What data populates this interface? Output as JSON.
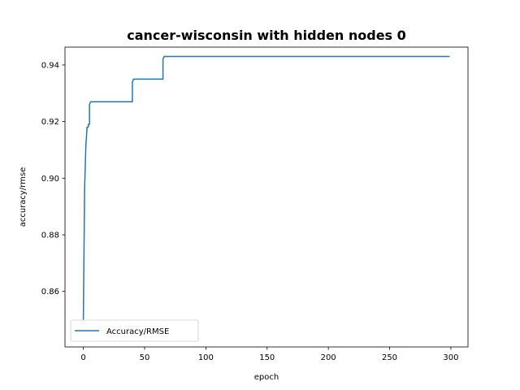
{
  "chart_data": {
    "type": "line",
    "title": "cancer-wisconsin with hidden nodes 0",
    "xlabel": "epoch",
    "ylabel": "accuracy/rmse",
    "xlim": [
      -15,
      314
    ],
    "ylim": [
      0.8404,
      0.9463
    ],
    "xticks": [
      0,
      50,
      100,
      150,
      200,
      250,
      300
    ],
    "xtick_labels": [
      "0",
      "50",
      "100",
      "150",
      "200",
      "250",
      "300"
    ],
    "yticks": [
      0.86,
      0.88,
      0.9,
      0.92,
      0.94
    ],
    "ytick_labels": [
      "0.86",
      "0.88",
      "0.90",
      "0.92",
      "0.94"
    ],
    "grid": false,
    "legend_position": "lower-left",
    "series": [
      {
        "name": "Accuracy/RMSE",
        "color": "#1f77b4",
        "x": [
          0,
          1,
          2,
          3,
          4,
          4,
          5,
          5,
          6,
          40,
          40,
          41,
          65,
          65,
          66,
          299
        ],
        "y": [
          0.85,
          0.896,
          0.911,
          0.918,
          0.918,
          0.919,
          0.919,
          0.926,
          0.927,
          0.927,
          0.934,
          0.935,
          0.935,
          0.942,
          0.943,
          0.943
        ]
      }
    ]
  }
}
